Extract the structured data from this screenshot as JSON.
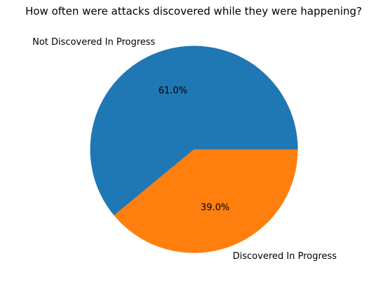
{
  "chart_data": {
    "type": "pie",
    "title": "How often were attacks discovered while they were happening?",
    "slices": [
      {
        "label": "Not Discovered In Progress",
        "value": 61.0,
        "pct_label": "61.0%",
        "color": "#1f77b4"
      },
      {
        "label": "Discovered In Progress",
        "value": 39.0,
        "pct_label": "39.0%",
        "color": "#ff7f0e"
      }
    ],
    "start_angle_deg": 0,
    "direction": "counterclockwise"
  }
}
